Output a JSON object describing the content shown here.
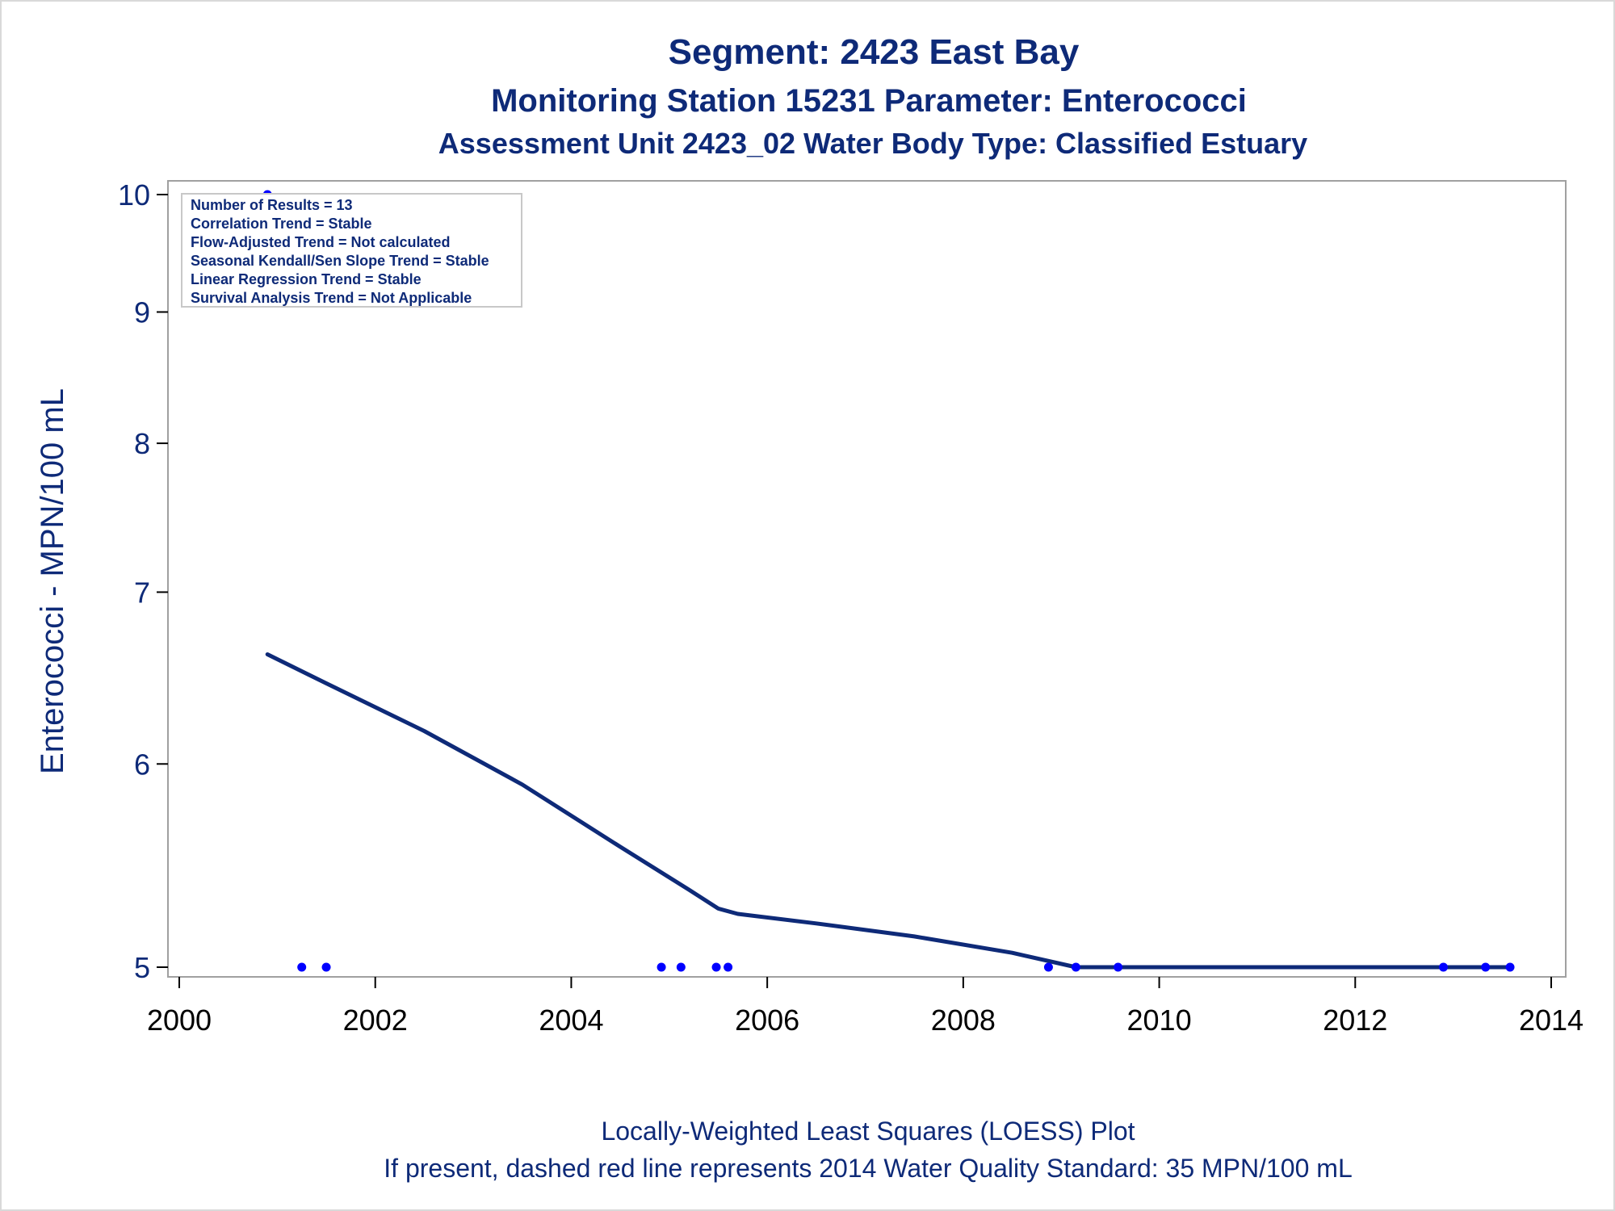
{
  "chart_data": {
    "type": "scatter",
    "title": "Segment: 2423  East Bay",
    "subtitle": "Monitoring Station 15231 Parameter: Enterococci",
    "subtitle2": "Assessment Unit 2423_02   Water Body Type: Classified Estuary",
    "ylabel": "Enterococci - MPN/100 mL",
    "xlabel": "",
    "y_scale": "log",
    "xlim": [
      2000,
      2014
    ],
    "ylim": [
      4.95,
      10.15
    ],
    "x_ticks": [
      "2000",
      "2002",
      "2004",
      "2006",
      "2008",
      "2010",
      "2012",
      "2014"
    ],
    "y_ticks": [
      "5",
      "6",
      "7",
      "8",
      "9",
      "10"
    ],
    "grid": false,
    "series": [
      {
        "type": "scatter",
        "color": "#0000ff",
        "points": [
          {
            "x": 2000.9,
            "y": 10
          },
          {
            "x": 2001.25,
            "y": 5
          },
          {
            "x": 2001.5,
            "y": 5
          },
          {
            "x": 2004.92,
            "y": 5
          },
          {
            "x": 2005.12,
            "y": 5
          },
          {
            "x": 2005.48,
            "y": 5
          },
          {
            "x": 2005.6,
            "y": 5
          },
          {
            "x": 2008.87,
            "y": 5
          },
          {
            "x": 2009.15,
            "y": 5
          },
          {
            "x": 2009.58,
            "y": 5
          },
          {
            "x": 2012.9,
            "y": 5
          },
          {
            "x": 2013.33,
            "y": 5
          },
          {
            "x": 2013.58,
            "y": 5
          }
        ]
      },
      {
        "type": "line",
        "color": "#0e2a78",
        "points": [
          {
            "x": 2000.9,
            "y": 6.62
          },
          {
            "x": 2001.5,
            "y": 6.45
          },
          {
            "x": 2002.5,
            "y": 6.18
          },
          {
            "x": 2003.5,
            "y": 5.89
          },
          {
            "x": 2004.5,
            "y": 5.57
          },
          {
            "x": 2005.2,
            "y": 5.36
          },
          {
            "x": 2005.5,
            "y": 5.27
          },
          {
            "x": 2005.7,
            "y": 5.245
          },
          {
            "x": 2006.5,
            "y": 5.2
          },
          {
            "x": 2007.5,
            "y": 5.14
          },
          {
            "x": 2008.5,
            "y": 5.065
          },
          {
            "x": 2009.15,
            "y": 5.0
          },
          {
            "x": 2013.58,
            "y": 5.0
          }
        ]
      }
    ],
    "annotations": [
      "Number of Results = 13",
      "Correlation Trend = Stable",
      "Flow-Adjusted Trend = Not calculated",
      "Seasonal Kendall/Sen Slope Trend = Stable",
      "Linear Regression Trend = Stable",
      "Survival Analysis Trend = Not Applicable"
    ],
    "footnotes": [
      "Locally-Weighted Least Squares (LOESS) Plot",
      "If present, dashed red line represents 2014 Water Quality Standard: 35 MPN/100 mL"
    ]
  }
}
